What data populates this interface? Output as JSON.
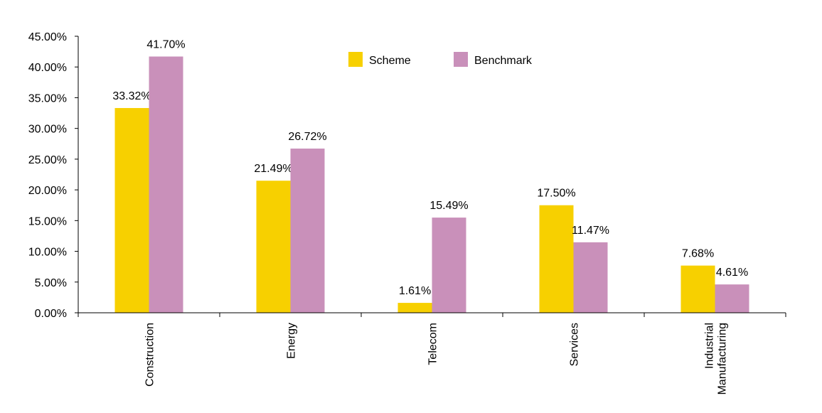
{
  "chart_data": {
    "type": "bar",
    "categories": [
      "Construction",
      "Energy",
      "Telecom",
      "Services",
      "Industrial Manufacturing"
    ],
    "category_lines": [
      [
        "Construction"
      ],
      [
        "Energy"
      ],
      [
        "Telecom"
      ],
      [
        "Services"
      ],
      [
        "Industrial",
        "Manufacturing"
      ]
    ],
    "series": [
      {
        "name": "Scheme",
        "values": [
          33.32,
          21.49,
          1.61,
          17.5,
          7.68
        ],
        "labels": [
          "33.32%",
          "21.49%",
          "1.61%",
          "17.50%",
          "7.68%"
        ],
        "color": "#F7D000"
      },
      {
        "name": "Benchmark",
        "values": [
          41.7,
          26.72,
          15.49,
          11.47,
          4.61
        ],
        "labels": [
          "41.70%",
          "26.72%",
          "15.49%",
          "11.47%",
          "4.61%"
        ],
        "color": "#C990BA"
      }
    ],
    "ylim": [
      0,
      45
    ],
    "yticks": [
      "0.00%",
      "5.00%",
      "10.00%",
      "15.00%",
      "20.00%",
      "25.00%",
      "30.00%",
      "35.00%",
      "40.00%",
      "45.00%"
    ],
    "legend_position": "top-center",
    "grid": false,
    "title": "",
    "xlabel": "",
    "ylabel": ""
  }
}
